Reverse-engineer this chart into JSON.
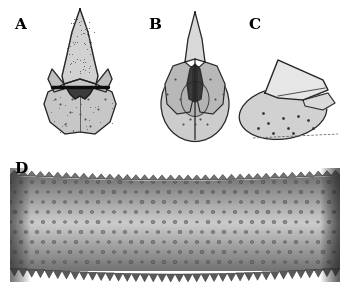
{
  "background_color": "#ffffff",
  "label_A": "A",
  "label_B": "B",
  "label_C": "C",
  "label_D": "D",
  "label_fontsize": 11,
  "label_fontweight": "bold",
  "label_fontfamily": "serif",
  "fig_width": 3.49,
  "fig_height": 3.0,
  "dpi": 100
}
